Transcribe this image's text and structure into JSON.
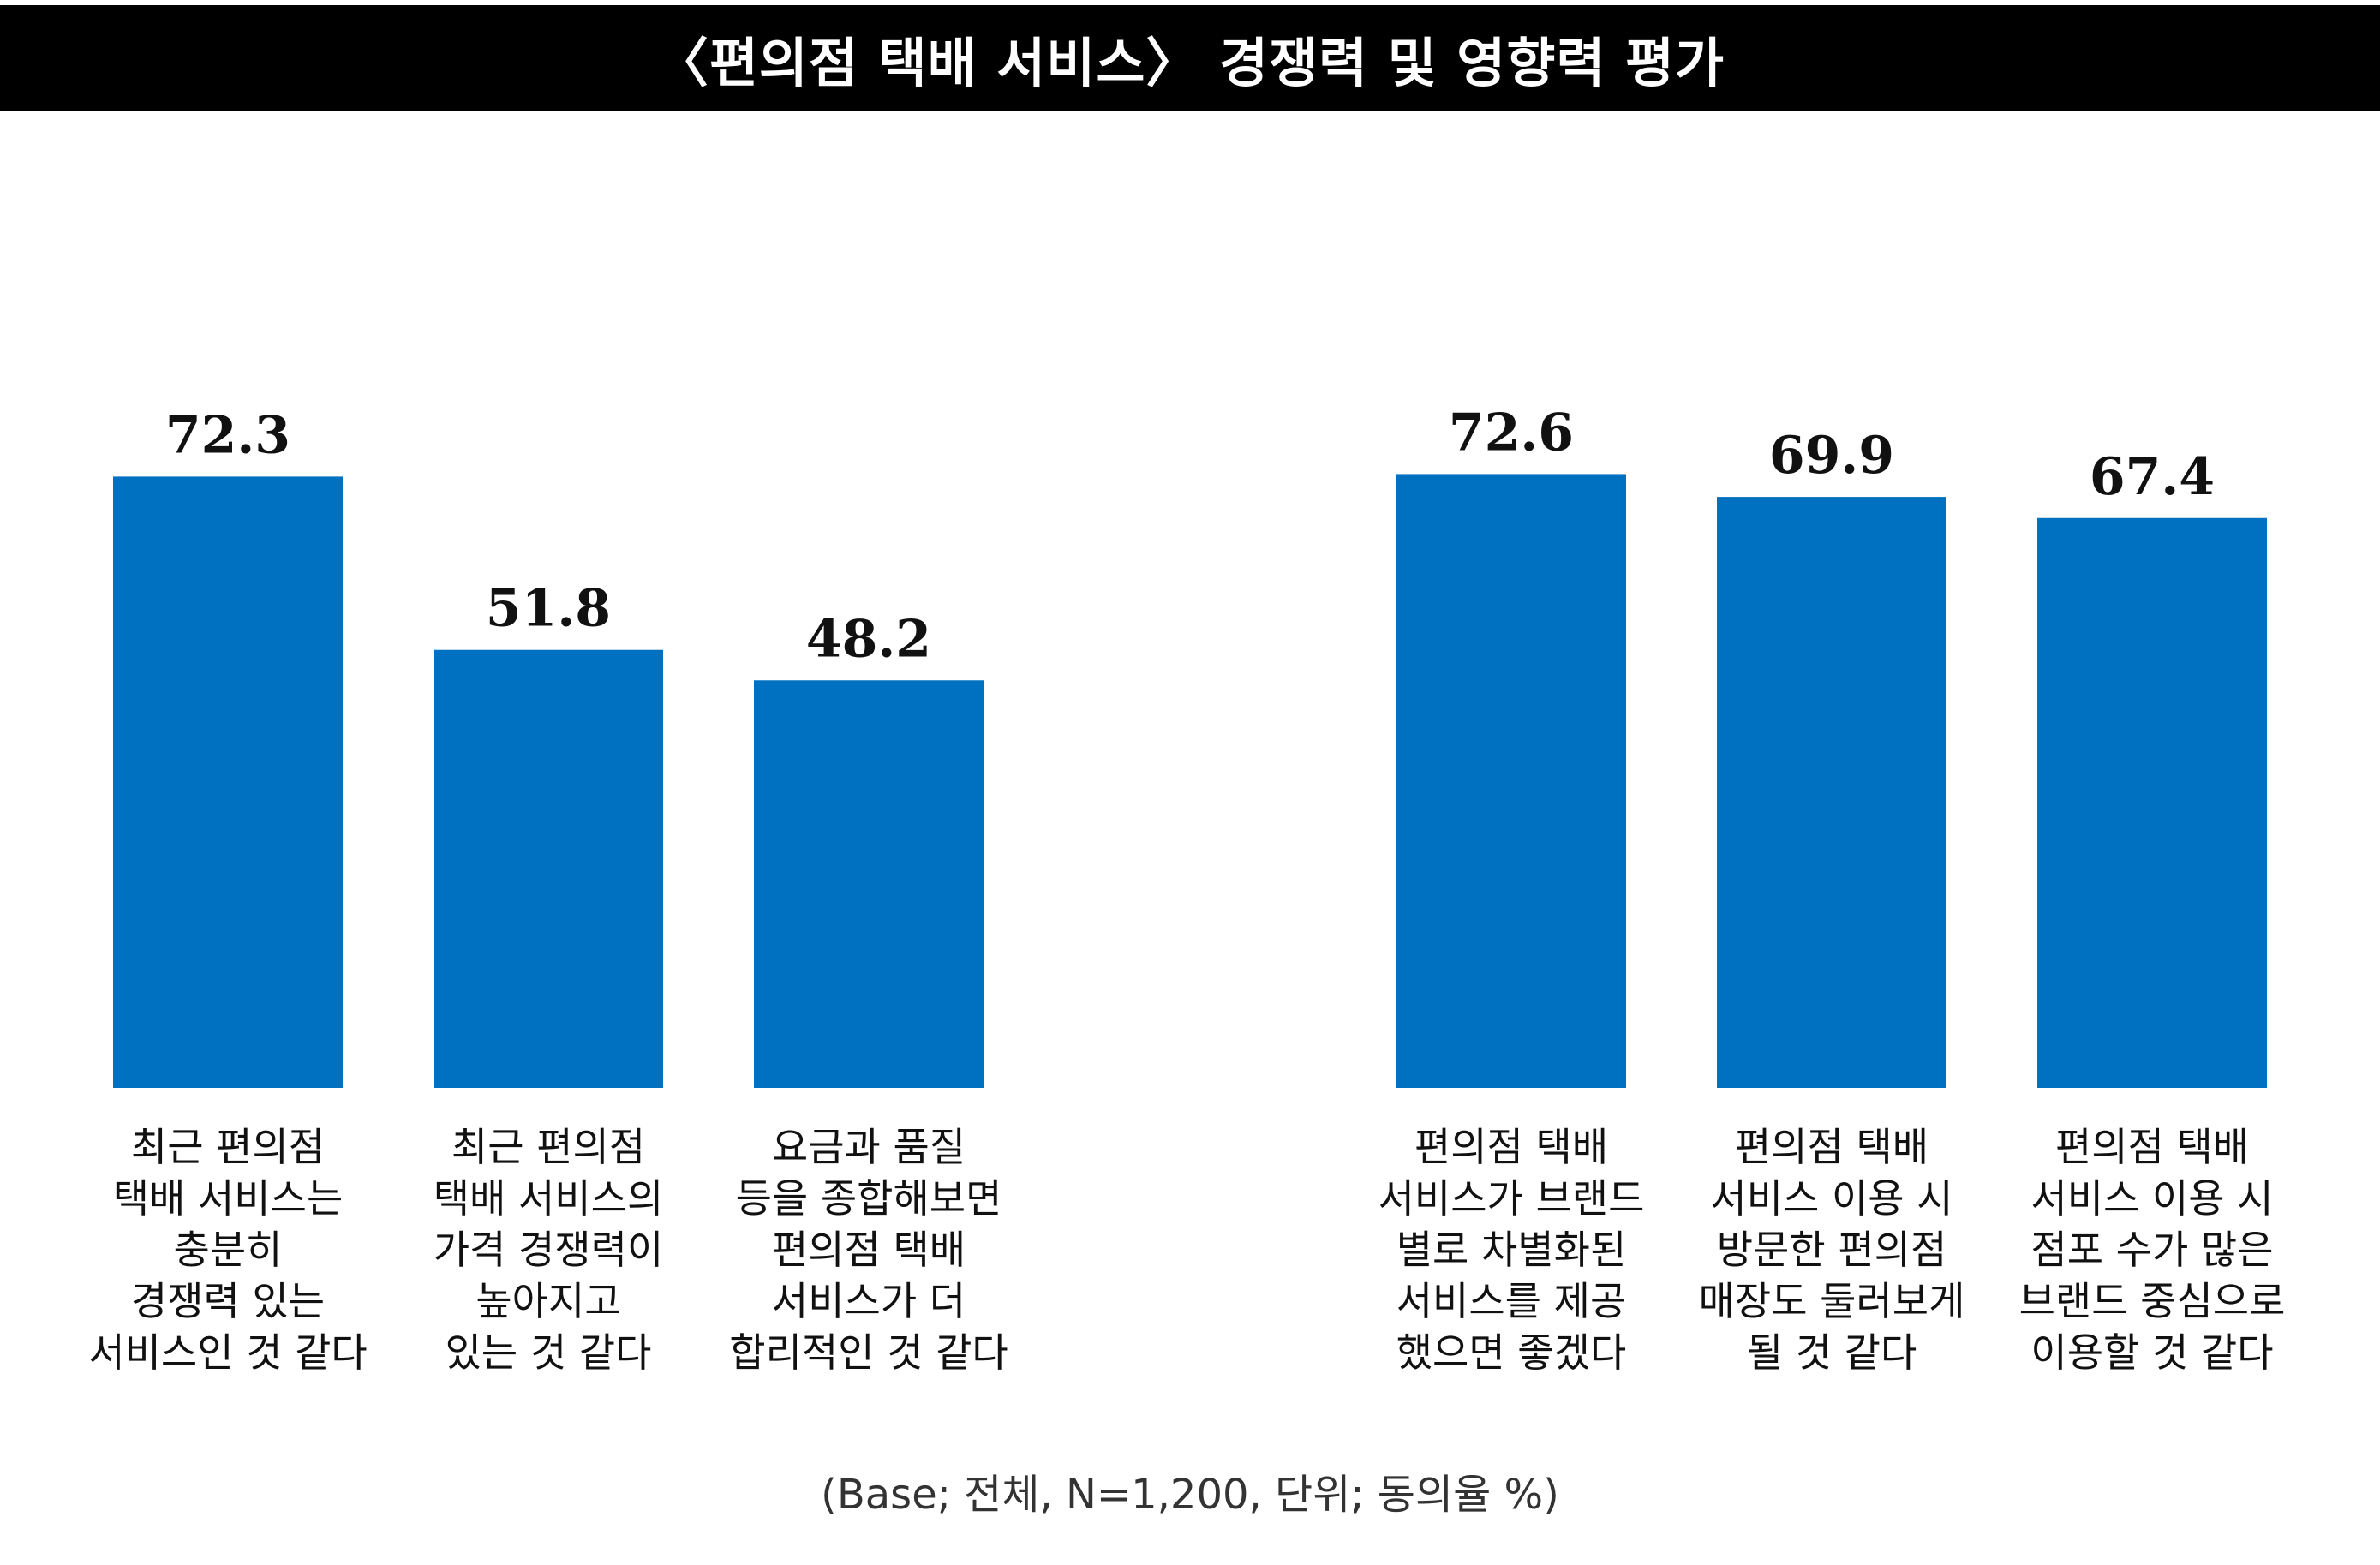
{
  "header": {
    "title": "〈편의점 택배 서비스〉 경쟁력 및 영향력 평가"
  },
  "chart_data": [
    {
      "type": "bar",
      "categories": [
        "최근 편의점\n택배 서비스는\n충분히\n경쟁력 있는\n서비스인 것 같다",
        "최근 편의점\n택배 서비스의\n가격 경쟁력이\n높아지고\n있는 것 같다",
        "요금과 품질\n등을 종합해보면\n편의점 택배\n서비스가 더\n합리적인 것 같다"
      ],
      "values": [
        72.3,
        51.8,
        48.2
      ],
      "data_labels": [
        "72.3",
        "51.8",
        "48.2"
      ],
      "color": "#0070C0",
      "grid": false,
      "legend": "none"
    },
    {
      "type": "bar",
      "categories": [
        "편의점 택배\n서비스가 브랜드\n별로 차별화된\n서비스를 제공\n했으면 좋겠다",
        "편의점 택배\n서비스 이용 시\n방문한 편의점\n매장도 둘러보게\n될 것 같다",
        "편의점 택배\n서비스 이용 시\n점포 수가 많은\n브랜드 중심으로\n이용할 것 같다"
      ],
      "values": [
        72.6,
        69.9,
        67.4
      ],
      "data_labels": [
        "72.6",
        "69.9",
        "67.4"
      ],
      "color": "#0070C0",
      "grid": false,
      "legend": "none"
    }
  ],
  "footnote": "(Base; 전체, N=1,200, 단위; 동의율 %)"
}
